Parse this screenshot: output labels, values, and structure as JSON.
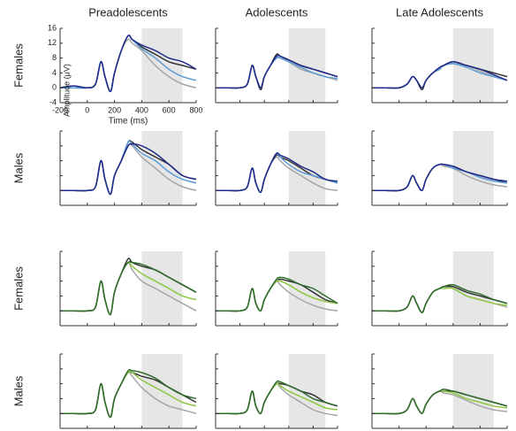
{
  "columns": [
    "Preadolescents",
    "Adolescents",
    "Late Adolescents"
  ],
  "rows": [
    "Females",
    "Males",
    "Females",
    "Males"
  ],
  "chart_data": [
    {
      "type": "line",
      "xlabel": "Time (ms)",
      "ylabel": "Amplitude (μV)",
      "xlim": [
        -200,
        800
      ],
      "ylim": [
        -4,
        16
      ],
      "xticks": [
        -200,
        0,
        200,
        400,
        600,
        800
      ],
      "yticks": [
        -4,
        0,
        4,
        8,
        12,
        16
      ],
      "shade": [
        400,
        700
      ],
      "x": [
        -200,
        -100,
        0,
        60,
        100,
        130,
        170,
        200,
        250,
        300,
        330,
        400,
        500,
        600,
        700,
        800
      ],
      "series": [
        {
          "color": "#a6a6a6",
          "values": [
            0,
            0,
            0,
            1,
            7,
            3,
            -1,
            4,
            10,
            13,
            12,
            10,
            6,
            3,
            1,
            0
          ]
        },
        {
          "color": "#333333",
          "values": [
            0,
            0.5,
            0,
            1,
            7,
            3,
            -1,
            4,
            10,
            14,
            13,
            11,
            9,
            7,
            6,
            5
          ]
        },
        {
          "color": "#5b9bd5",
          "values": [
            0,
            0,
            0,
            1,
            7,
            3,
            -1,
            4,
            10,
            14,
            13,
            10.5,
            8,
            5,
            3,
            2
          ]
        },
        {
          "color": "#1f2a8a",
          "values": [
            0,
            0.5,
            0,
            1,
            7,
            3,
            -1,
            4,
            10,
            14,
            13,
            11.5,
            10,
            8,
            7,
            5
          ]
        }
      ]
    },
    {
      "type": "line",
      "x": [
        -200,
        -100,
        0,
        60,
        100,
        130,
        170,
        200,
        250,
        300,
        330,
        400,
        500,
        600,
        700,
        800
      ],
      "series": [
        {
          "color": "#a6a6a6",
          "values": [
            0,
            0,
            0,
            1,
            6,
            3,
            0,
            3,
            6,
            8,
            8,
            7,
            5,
            4,
            3,
            2
          ]
        },
        {
          "color": "#333333",
          "values": [
            0,
            0,
            0,
            1,
            6,
            3,
            -0.5,
            3,
            6,
            9,
            8.5,
            7.5,
            6,
            5,
            4,
            3
          ]
        },
        {
          "color": "#5b9bd5",
          "values": [
            0,
            0,
            0,
            1,
            6,
            3,
            0,
            3,
            6,
            8,
            8,
            7,
            5.5,
            4,
            3,
            2.5
          ]
        },
        {
          "color": "#1f2a8a",
          "values": [
            0,
            0,
            0,
            1,
            6,
            3,
            0,
            3,
            6,
            8.5,
            8.5,
            7.5,
            6,
            5,
            4,
            3
          ]
        }
      ]
    },
    {
      "type": "line",
      "x": [
        -200,
        -100,
        0,
        60,
        100,
        130,
        170,
        200,
        250,
        300,
        330,
        400,
        500,
        600,
        700,
        800
      ],
      "series": [
        {
          "color": "#a6a6a6",
          "values": [
            0,
            0,
            0,
            1,
            3,
            2,
            0,
            2,
            4,
            5,
            6,
            6.5,
            6,
            4.5,
            3,
            2
          ]
        },
        {
          "color": "#333333",
          "values": [
            0,
            0,
            0,
            1,
            3,
            2,
            -0.5,
            2,
            4,
            5,
            6,
            7,
            6,
            5,
            4,
            3
          ]
        },
        {
          "color": "#5b9bd5",
          "values": [
            0,
            0,
            0,
            1,
            3,
            2,
            0,
            2,
            4,
            5,
            6,
            6.5,
            5.5,
            4,
            3,
            2
          ]
        },
        {
          "color": "#1f2a8a",
          "values": [
            0,
            0,
            0,
            1,
            3,
            2,
            0,
            2,
            4,
            5.5,
            6,
            7,
            6,
            5,
            3.5,
            2
          ]
        }
      ]
    },
    {
      "type": "line",
      "x": [
        -200,
        -100,
        0,
        60,
        100,
        130,
        170,
        200,
        250,
        300,
        330,
        400,
        500,
        600,
        700,
        800
      ],
      "series": [
        {
          "color": "#a6a6a6",
          "values": [
            0,
            0,
            0,
            1,
            8,
            3,
            -1,
            4,
            8,
            12,
            12,
            9,
            6,
            3,
            1,
            0
          ]
        },
        {
          "color": "#333333",
          "values": [
            0,
            0,
            0,
            1,
            8,
            3,
            -1,
            4,
            8,
            13,
            13,
            11,
            9,
            7,
            4,
            3
          ]
        },
        {
          "color": "#5b9bd5",
          "values": [
            0,
            0,
            0,
            1,
            8,
            3,
            -1,
            4,
            8,
            13,
            12.5,
            10,
            8,
            5,
            3,
            2
          ]
        },
        {
          "color": "#1f2a8a",
          "values": [
            0,
            0,
            0,
            1,
            8,
            3,
            -1,
            4,
            8,
            12,
            12.5,
            12,
            10,
            7,
            4,
            3
          ]
        }
      ]
    },
    {
      "type": "line",
      "x": [
        -200,
        -100,
        0,
        60,
        100,
        130,
        170,
        200,
        250,
        300,
        330,
        400,
        500,
        600,
        700,
        800
      ],
      "series": [
        {
          "color": "#a6a6a6",
          "values": [
            0,
            0,
            0,
            1,
            6,
            2,
            -0.5,
            3,
            7,
            9,
            8,
            6,
            4,
            2,
            0.5,
            0
          ]
        },
        {
          "color": "#333333",
          "values": [
            0,
            0,
            0,
            1,
            6,
            2,
            -0.5,
            3,
            7,
            9.5,
            9,
            8,
            6,
            4,
            3,
            2
          ]
        },
        {
          "color": "#5b9bd5",
          "values": [
            0,
            0,
            0,
            1,
            6,
            2,
            -0.5,
            3,
            7,
            10,
            9,
            7,
            5,
            4,
            3,
            2
          ]
        },
        {
          "color": "#1f2a8a",
          "values": [
            0,
            0,
            0,
            1,
            6,
            2,
            -0.5,
            3,
            7,
            10,
            9.5,
            8.5,
            6.5,
            5,
            3,
            2.5
          ]
        }
      ]
    },
    {
      "type": "line",
      "x": [
        -200,
        -100,
        0,
        60,
        100,
        130,
        170,
        200,
        250,
        300,
        330,
        400,
        500,
        600,
        700,
        800
      ],
      "series": [
        {
          "color": "#a6a6a6",
          "values": [
            0,
            0,
            0,
            1,
            4,
            2,
            0,
            3,
            6,
            7,
            6.5,
            6,
            4,
            2.5,
            1.5,
            1
          ]
        },
        {
          "color": "#333333",
          "values": [
            0,
            0,
            0,
            1,
            4,
            2,
            0,
            3,
            6,
            7,
            7,
            6.5,
            5,
            4,
            3,
            2
          ]
        },
        {
          "color": "#5b9bd5",
          "values": [
            0,
            0,
            0,
            1,
            4,
            2,
            0,
            3,
            6,
            7,
            7,
            6,
            5,
            3.5,
            2.5,
            2
          ]
        },
        {
          "color": "#1f2a8a",
          "values": [
            0,
            0,
            0,
            1,
            4,
            2,
            0,
            3,
            6,
            7,
            7,
            6.5,
            5,
            4,
            3,
            2.5
          ]
        }
      ]
    },
    {
      "type": "line",
      "x": [
        -200,
        -100,
        0,
        60,
        100,
        130,
        170,
        200,
        250,
        300,
        330,
        400,
        500,
        600,
        700,
        800
      ],
      "series": [
        {
          "color": "#a6a6a6",
          "values": [
            0,
            0,
            0,
            1,
            8,
            3,
            -1,
            5,
            10,
            13,
            11,
            8,
            6,
            4,
            2,
            0
          ]
        },
        {
          "color": "#333333",
          "values": [
            0,
            0,
            0,
            1,
            8,
            3,
            -1,
            5,
            10,
            14,
            13,
            12,
            11,
            9,
            7,
            5
          ]
        },
        {
          "color": "#8dc63f",
          "values": [
            0,
            0,
            0,
            1,
            8,
            3,
            -1,
            5,
            10,
            13,
            12,
            10,
            8,
            6,
            4,
            3
          ]
        },
        {
          "color": "#2e6b2e",
          "values": [
            0,
            0,
            0,
            1,
            8,
            3,
            -1,
            5,
            10,
            13,
            13,
            12.5,
            11,
            9,
            7,
            5
          ]
        }
      ]
    },
    {
      "type": "line",
      "x": [
        -200,
        -100,
        0,
        60,
        100,
        130,
        170,
        200,
        250,
        300,
        330,
        400,
        500,
        600,
        700,
        800
      ],
      "series": [
        {
          "color": "#a6a6a6",
          "values": [
            0,
            0,
            0,
            1,
            6,
            2,
            0,
            3,
            6,
            8,
            7,
            5,
            3,
            1.5,
            0.5,
            0
          ]
        },
        {
          "color": "#333333",
          "values": [
            0,
            0,
            0,
            1,
            6,
            2,
            0,
            3,
            6,
            8,
            8.5,
            8,
            7,
            5,
            3,
            2
          ]
        },
        {
          "color": "#8dc63f",
          "values": [
            0,
            0,
            0,
            1,
            6,
            2,
            0,
            3,
            6,
            8,
            8,
            7,
            5,
            3.5,
            2.5,
            2
          ]
        },
        {
          "color": "#2e6b2e",
          "values": [
            0,
            0,
            0,
            1,
            6,
            2,
            0,
            3,
            6,
            8.5,
            9,
            8.5,
            7,
            6,
            4,
            2
          ]
        }
      ]
    },
    {
      "type": "line",
      "x": [
        -200,
        -100,
        0,
        60,
        100,
        130,
        170,
        200,
        250,
        300,
        330,
        400,
        500,
        600,
        700,
        800
      ],
      "series": [
        {
          "color": "#a6a6a6",
          "values": [
            0,
            0,
            0,
            1,
            4,
            2,
            -0.5,
            2,
            5,
            6,
            6.5,
            6,
            4,
            3,
            2,
            1
          ]
        },
        {
          "color": "#333333",
          "values": [
            0,
            0,
            0,
            1,
            4,
            2,
            -0.5,
            2,
            5,
            6,
            6.5,
            6.5,
            5,
            4,
            3,
            2
          ]
        },
        {
          "color": "#8dc63f",
          "values": [
            0,
            0,
            0,
            1,
            4,
            2,
            -0.5,
            2,
            5,
            6,
            6,
            6,
            4,
            3,
            2,
            1.5
          ]
        },
        {
          "color": "#2e6b2e",
          "values": [
            0,
            0,
            0,
            1,
            4,
            2,
            -0.5,
            2,
            5,
            6,
            6.5,
            7,
            5.5,
            4.5,
            3,
            2
          ]
        }
      ]
    },
    {
      "type": "line",
      "x": [
        -200,
        -100,
        0,
        60,
        100,
        130,
        170,
        200,
        250,
        300,
        330,
        400,
        500,
        600,
        700,
        800
      ],
      "series": [
        {
          "color": "#a6a6a6",
          "values": [
            0,
            0,
            0,
            1,
            8,
            3,
            -1,
            4,
            8,
            11,
            10,
            7,
            4,
            2,
            1,
            0
          ]
        },
        {
          "color": "#333333",
          "values": [
            0,
            0,
            0,
            1,
            8,
            3,
            -1,
            4,
            8,
            11,
            11,
            10,
            9,
            7,
            5,
            3
          ]
        },
        {
          "color": "#8dc63f",
          "values": [
            0,
            0,
            0,
            1,
            8,
            3,
            -1,
            4,
            8,
            11,
            11,
            9,
            7,
            5,
            3,
            2
          ]
        },
        {
          "color": "#2e6b2e",
          "values": [
            0,
            0,
            0,
            1,
            8,
            3,
            -1,
            4,
            8,
            11.5,
            11.5,
            11,
            9.5,
            7,
            5,
            4
          ]
        }
      ]
    },
    {
      "type": "line",
      "x": [
        -200,
        -100,
        0,
        60,
        100,
        130,
        170,
        200,
        250,
        300,
        330,
        400,
        500,
        600,
        700,
        800
      ],
      "series": [
        {
          "color": "#a6a6a6",
          "values": [
            0,
            0,
            0,
            1,
            6,
            2,
            0,
            3,
            6,
            8,
            7,
            5,
            3,
            1,
            0,
            -0.5
          ]
        },
        {
          "color": "#333333",
          "values": [
            0,
            0,
            0,
            1,
            6,
            2,
            0,
            3,
            6,
            8,
            8,
            7.5,
            6,
            5,
            3,
            2
          ]
        },
        {
          "color": "#8dc63f",
          "values": [
            0,
            0,
            0,
            1,
            6,
            2,
            0,
            3,
            6,
            8,
            7.5,
            6,
            4.5,
            3,
            1.5,
            1
          ]
        },
        {
          "color": "#2e6b2e",
          "values": [
            0,
            0,
            0,
            1,
            6,
            2,
            0,
            3,
            6,
            8.5,
            8.5,
            7.5,
            6,
            4,
            3,
            2
          ]
        }
      ]
    },
    {
      "type": "line",
      "x": [
        -200,
        -100,
        0,
        60,
        100,
        130,
        170,
        200,
        250,
        300,
        330,
        400,
        500,
        600,
        700,
        800
      ],
      "series": [
        {
          "color": "#a6a6a6",
          "values": [
            0,
            0,
            0,
            1,
            4,
            2,
            0,
            2.5,
            5,
            6,
            5.5,
            5,
            3.5,
            2,
            1,
            0.5
          ]
        },
        {
          "color": "#333333",
          "values": [
            0,
            0,
            0,
            1,
            4,
            2,
            0,
            2.5,
            5,
            6,
            6,
            6,
            5,
            4,
            3,
            2
          ]
        },
        {
          "color": "#8dc63f",
          "values": [
            0,
            0,
            0,
            1,
            4,
            2,
            0,
            2.5,
            5,
            6,
            6,
            5.5,
            4,
            3,
            2,
            1.5
          ]
        },
        {
          "color": "#2e6b2e",
          "values": [
            0,
            0,
            0,
            1,
            4,
            2,
            0,
            2.5,
            5,
            6,
            6.5,
            6,
            5,
            4,
            3,
            2
          ]
        }
      ]
    }
  ]
}
